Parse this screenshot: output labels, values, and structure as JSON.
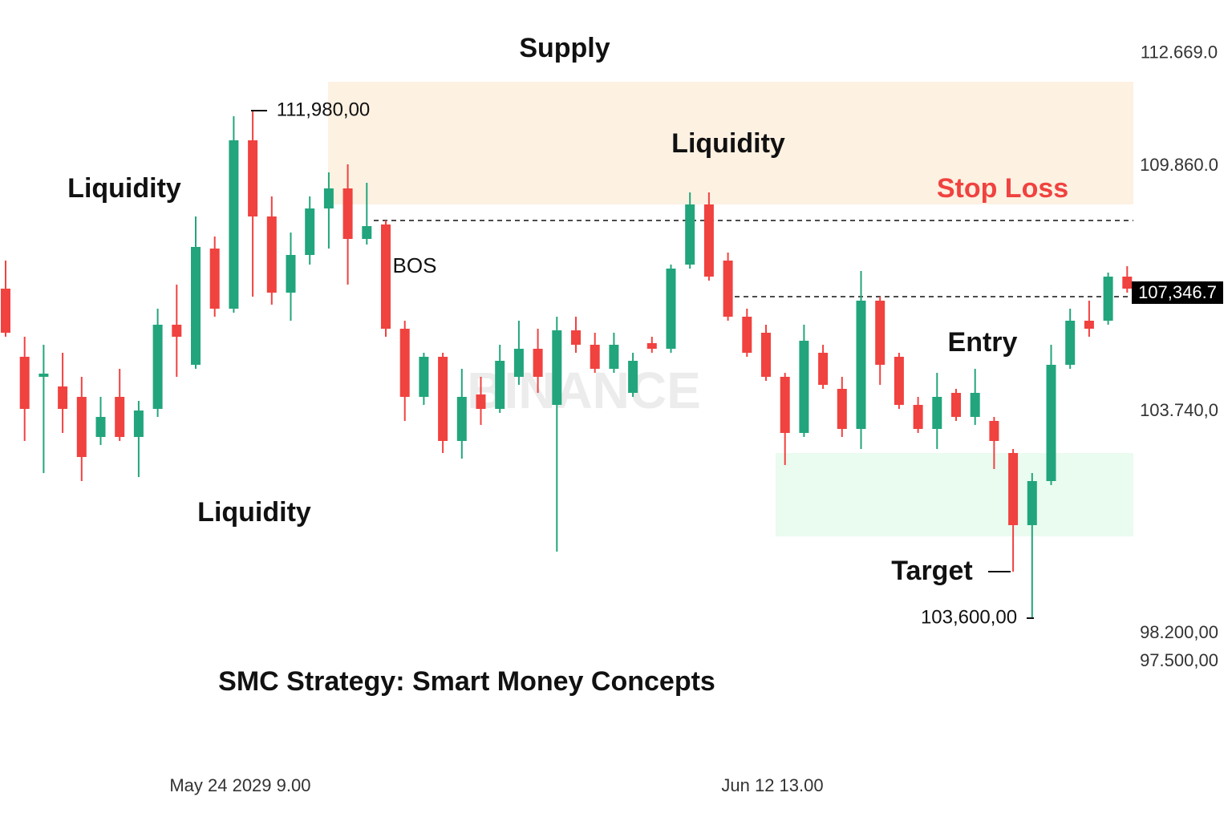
{
  "chart_data": {
    "type": "candlestick",
    "title": "SMC Strategy: Smart Money Concepts",
    "annotations": [
      "Supply",
      "Liquidity",
      "Liquidity",
      "Liquidity",
      "Stop Loss",
      "BOS",
      "Entry",
      "Target",
      "111,980,00",
      "103,600,00"
    ],
    "watermark": "BINANCE",
    "last_price_label": "107,346.7",
    "up_color": "#22a57c",
    "down_color": "#f0423f",
    "categories": [
      null,
      null,
      null,
      null,
      null,
      null,
      null,
      null,
      null,
      null,
      null,
      null,
      "May 24 2029 9.00",
      null,
      null,
      null,
      null,
      null,
      null,
      null,
      null,
      null,
      null,
      null,
      null,
      null,
      null,
      null,
      null,
      null,
      null,
      null,
      null,
      null,
      null,
      null,
      null,
      null,
      null,
      null,
      "Jun 12 13.00",
      null,
      null,
      null,
      null,
      null,
      null,
      null,
      null,
      null,
      null,
      null,
      null,
      null,
      null,
      null,
      null,
      null,
      null,
      null
    ],
    "open": [
      106800,
      105100,
      104600,
      104360,
      104100,
      103100,
      104100,
      103100,
      103800,
      105900,
      104900,
      107800,
      106300,
      110500,
      108600,
      106700,
      107640,
      108800,
      109300,
      108040,
      108400,
      105800,
      104100,
      105100,
      103000,
      104160,
      103800,
      104600,
      105300,
      103900,
      105760,
      105400,
      104800,
      104200,
      105440,
      105300,
      107400,
      108900,
      107500,
      106100,
      105700,
      104600,
      103200,
      105200,
      104300,
      103300,
      106500,
      105100,
      103900,
      103300,
      104200,
      103600,
      103500,
      102700,
      100900,
      102000,
      104900,
      106000,
      106000,
      107100
    ],
    "high": [
      107500,
      105600,
      105400,
      105200,
      104600,
      104100,
      104800,
      104000,
      106300,
      106900,
      108600,
      108100,
      111100,
      111240,
      109100,
      108200,
      109100,
      109700,
      109900,
      109440,
      108500,
      106000,
      105200,
      105200,
      104800,
      104600,
      105400,
      106000,
      105800,
      106100,
      106100,
      105700,
      105700,
      105200,
      105600,
      107400,
      109200,
      109200,
      107700,
      106300,
      105900,
      104700,
      105900,
      105400,
      104600,
      107240,
      106600,
      105200,
      104100,
      104700,
      104300,
      104800,
      103600,
      102800,
      102200,
      105400,
      106300,
      106500,
      107200,
      107360
    ],
    "low": [
      105600,
      103000,
      102200,
      103200,
      102000,
      102900,
      103000,
      102100,
      103600,
      104600,
      104800,
      106100,
      106200,
      106600,
      106400,
      106000,
      107400,
      107800,
      106900,
      107900,
      105600,
      103500,
      103900,
      102700,
      102560,
      103400,
      103700,
      104400,
      104200,
      100240,
      105200,
      104700,
      104700,
      104100,
      105200,
      105200,
      107300,
      107000,
      106000,
      105100,
      104500,
      102400,
      103100,
      104300,
      103100,
      102800,
      104400,
      103800,
      103200,
      102800,
      103500,
      103400,
      102300,
      99740,
      98600,
      101900,
      104800,
      105600,
      105900,
      106700
    ],
    "close": [
      105700,
      103800,
      104680,
      103800,
      102600,
      103600,
      103100,
      103760,
      105900,
      105600,
      107840,
      106300,
      110500,
      108600,
      106700,
      107640,
      108800,
      109300,
      108040,
      108360,
      105800,
      104100,
      105100,
      103000,
      104100,
      103800,
      105000,
      105300,
      104600,
      105760,
      105400,
      104800,
      105400,
      105000,
      105300,
      107300,
      108900,
      107100,
      106100,
      105200,
      104600,
      103200,
      105500,
      104400,
      103300,
      106500,
      104900,
      103900,
      103300,
      104100,
      103600,
      104200,
      103000,
      100900,
      102000,
      104900,
      106000,
      105800,
      107100,
      106800
    ],
    "ylim": [
      93520,
      114000
    ],
    "yticks": [
      {
        "value": 112669,
        "label": "112.669.0"
      },
      {
        "value": 109860,
        "label": "109.860.0"
      },
      {
        "value": 103740,
        "label": "103.740,0"
      },
      {
        "value": 98200,
        "label": "98.200,00"
      },
      {
        "value": 97500,
        "label": "97.500,00"
      }
    ]
  }
}
